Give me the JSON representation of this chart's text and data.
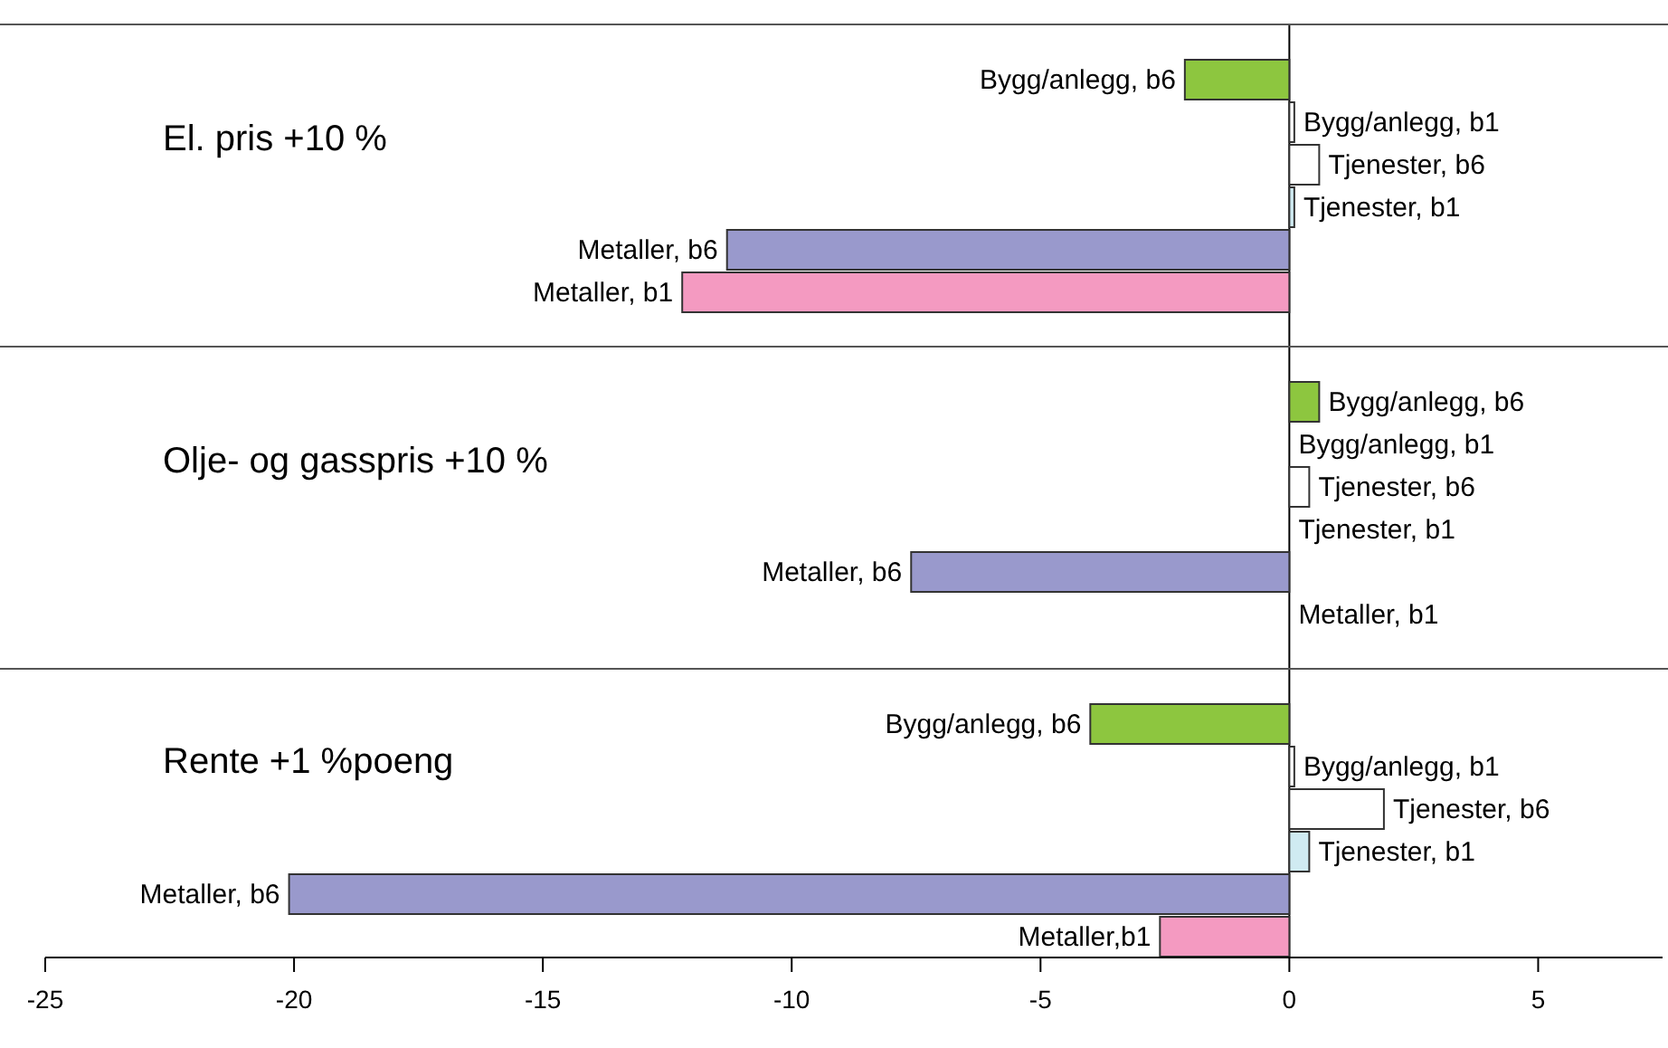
{
  "chart_data": [
    {
      "type": "bar",
      "orientation": "horizontal",
      "title": "El. pris +10 %",
      "categories": [
        "Bygg/anlegg, b6",
        "Bygg/anlegg, b1",
        "Tjenester, b6",
        "Tjenester, b1",
        "Metaller, b6",
        "Metaller, b1"
      ],
      "values": [
        -2.1,
        0.1,
        0.6,
        0.1,
        -11.3,
        -12.2
      ],
      "colors": [
        "#8dc63f",
        "#ffffff",
        "#ffffff",
        "#d0ebf2",
        "#9999cc",
        "#f49ac1"
      ],
      "xlim": [
        -25,
        7.5
      ],
      "xticks": [
        -25,
        -20,
        -15,
        -10,
        -5,
        0,
        5
      ],
      "tick_labels": "y"
    },
    {
      "type": "bar",
      "orientation": "horizontal",
      "title": "Olje- og gasspris +10 %",
      "categories": [
        "Bygg/anlegg, b6",
        "Bygg/anlegg, b1",
        "Tjenester, b6",
        "Tjenester, b1",
        "Metaller, b6",
        "Metaller, b1"
      ],
      "values": [
        0.6,
        0,
        0.4,
        0,
        -7.6,
        0
      ],
      "colors": [
        "#8dc63f",
        "#ffffff",
        "#ffffff",
        "#d0ebf2",
        "#9999cc",
        "#f49ac1"
      ],
      "xlim": [
        -25,
        7.5
      ],
      "xticks": [
        -25,
        -20,
        -15,
        -10,
        -5,
        0,
        5
      ],
      "tick_labels": "y"
    },
    {
      "type": "bar",
      "orientation": "horizontal",
      "title": "Rente +1 %poeng",
      "categories": [
        "Bygg/anlegg, b6",
        "Bygg/anlegg, b1",
        "Tjenester, b6",
        "Tjenester, b1",
        "Metaller, b6",
        "Metaller,b1"
      ],
      "values": [
        -4.0,
        0.1,
        1.9,
        0.4,
        -20.1,
        -2.6
      ],
      "colors": [
        "#8dc63f",
        "#ffffff",
        "#ffffff",
        "#d0ebf2",
        "#9999cc",
        "#f49ac1"
      ],
      "xlim": [
        -25,
        7.5
      ],
      "xticks": [
        -25,
        -20,
        -15,
        -10,
        -5,
        0,
        5
      ]
    }
  ]
}
